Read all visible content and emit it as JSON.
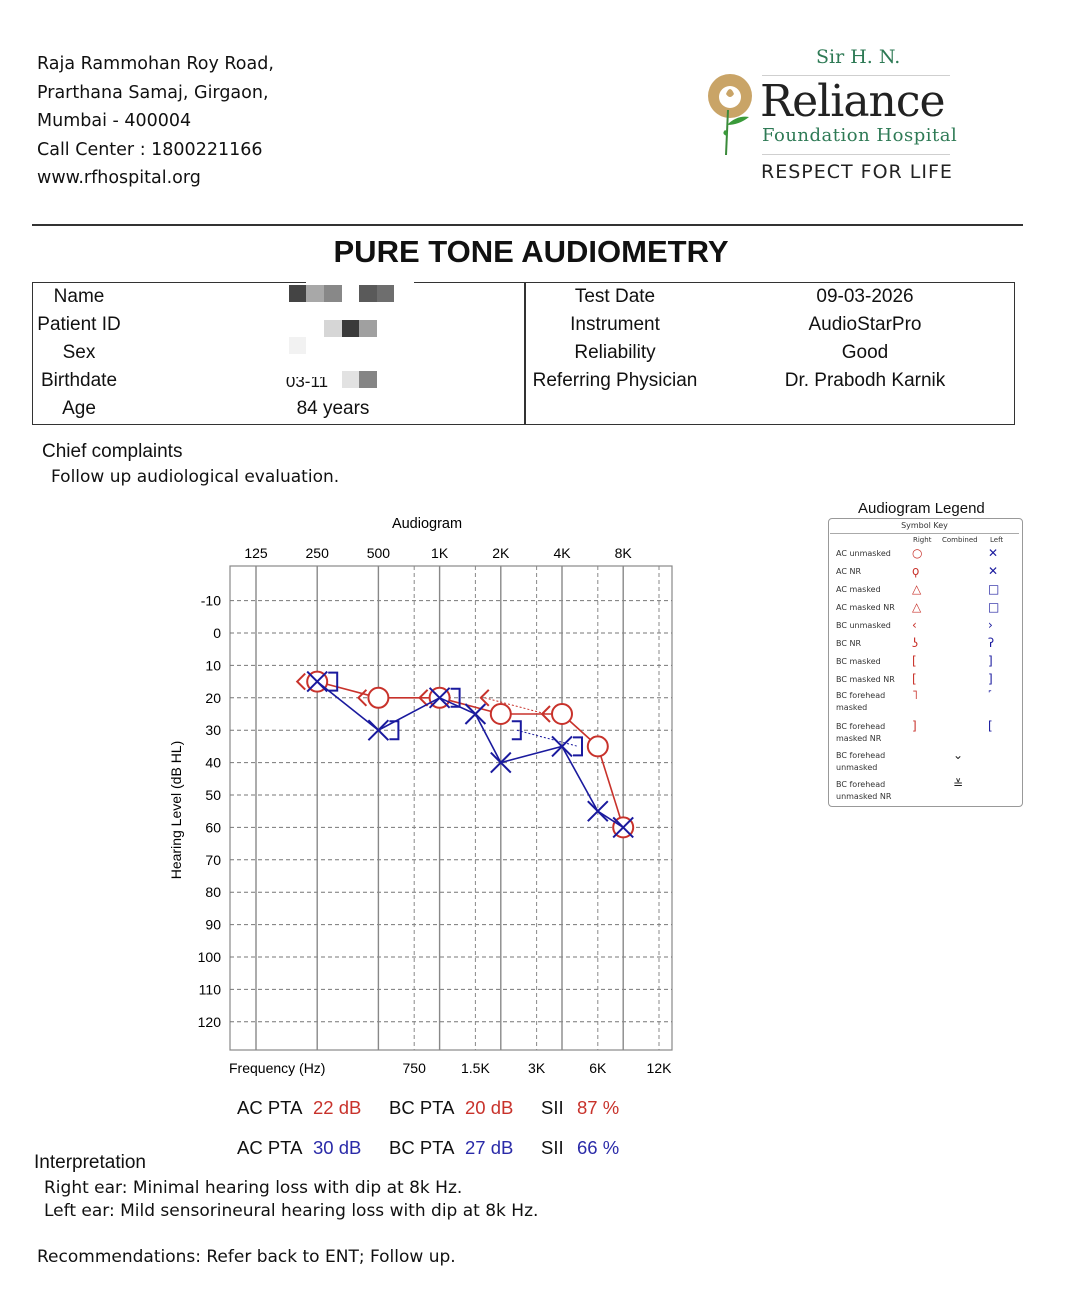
{
  "address": [
    "Raja Rammohan Roy Road,",
    "Prarthana Samaj, Girgaon,",
    "Mumbai - 400004",
    "Call Center : 1800221166",
    "www.rfhospital.org"
  ],
  "logo": {
    "prefix": "Sir H. N.",
    "name": "Reliance",
    "sub": "Foundation Hospital",
    "tagline": "RESPECT FOR LIFE"
  },
  "title": "PURE TONE AUDIOMETRY",
  "patient": {
    "name_label": "Name",
    "id_label": "Patient ID",
    "sex_label": "Sex",
    "birthdate_label": "Birthdate",
    "birthdate_value": "03-11",
    "age_label": "Age",
    "age_value": "84 years",
    "test_date_label": "Test Date",
    "test_date": "09-03-2026",
    "instrument_label": "Instrument",
    "instrument": "AudioStarPro",
    "reliability_label": "Reliability",
    "reliability": "Good",
    "physician_label": "Referring Physician",
    "physician": "Dr. Prabodh Karnik"
  },
  "complaints": {
    "heading": "Chief complaints",
    "text": "Follow up audiological evaluation."
  },
  "chart_data": {
    "type": "scatter",
    "title": "Audiogram",
    "xlabel": "Frequency (Hz)",
    "ylabel": "Hearing Level (dB HL)",
    "x_scale": "log",
    "x_ticks_top": [
      "125",
      "250",
      "500",
      "1K",
      "2K",
      "4K",
      "8K"
    ],
    "x_ticks_top_hz": [
      125,
      250,
      500,
      1000,
      2000,
      4000,
      8000
    ],
    "x_ticks_bottom": [
      "750",
      "1.5K",
      "3K",
      "6K",
      "12K"
    ],
    "x_ticks_bottom_hz": [
      750,
      1500,
      3000,
      6000,
      12000
    ],
    "y_ticks": [
      -10,
      0,
      10,
      20,
      30,
      40,
      50,
      60,
      70,
      80,
      90,
      100,
      110,
      120
    ],
    "ylim": [
      -20,
      130
    ],
    "y_inverted": true,
    "grid": true,
    "series": [
      {
        "ear": "right",
        "symbol": "circle",
        "color": "#c8322b",
        "line": "solid",
        "x": [
          250,
          500,
          1000,
          2000,
          4000,
          6000,
          8000
        ],
        "y": [
          15,
          20,
          20,
          25,
          25,
          35,
          60
        ]
      },
      {
        "ear": "right",
        "symbol": "lt",
        "color": "#c8322b",
        "line": "dotted",
        "x": [
          250,
          500,
          1000,
          2000,
          4000
        ],
        "y": [
          15,
          20,
          20,
          20,
          25
        ]
      },
      {
        "ear": "left",
        "symbol": "x",
        "color": "#1a1a9e",
        "line": "solid",
        "x": [
          250,
          500,
          1000,
          1500,
          2000,
          4000,
          6000,
          8000
        ],
        "y": [
          15,
          30,
          20,
          25,
          40,
          35,
          55,
          60
        ]
      },
      {
        "ear": "left",
        "symbol": "rbracket",
        "color": "#1a1a9e",
        "line": "dotted",
        "x": [
          250,
          500,
          1000,
          2000,
          4000
        ],
        "y": [
          15,
          30,
          20,
          30,
          35
        ]
      }
    ]
  },
  "legend": {
    "title": "Audiogram Legend",
    "subtitle": "Symbol Key",
    "columns": [
      "Right",
      "Combined",
      "Left"
    ],
    "rows": [
      {
        "label": "AC unmasked",
        "right": "○",
        "combined": "",
        "left": "✕"
      },
      {
        "label": "AC NR",
        "right": "ϙ",
        "combined": "",
        "left": "✕"
      },
      {
        "label": "AC masked",
        "right": "△",
        "combined": "",
        "left": "□"
      },
      {
        "label": "AC masked NR",
        "right": "△",
        "combined": "",
        "left": "□"
      },
      {
        "label": "BC unmasked",
        "right": "‹",
        "combined": "",
        "left": "›"
      },
      {
        "label": "BC NR",
        "right": "ʖ",
        "combined": "",
        "left": "ʔ"
      },
      {
        "label": "BC masked",
        "right": "[",
        "combined": "",
        "left": "]"
      },
      {
        "label": "BC masked NR",
        "right": "[",
        "combined": "",
        "left": "]"
      },
      {
        "label": "BC forehead masked",
        "right": "˥",
        "combined": "",
        "left": "˹"
      },
      {
        "label": "BC forehead masked NR",
        "right": "]",
        "combined": "",
        "left": "["
      },
      {
        "label": "BC forehead unmasked",
        "right": "",
        "combined": "⌄",
        "left": ""
      },
      {
        "label": "BC forehead unmasked NR",
        "right": "",
        "combined": "≚",
        "left": ""
      }
    ]
  },
  "pta": {
    "right": {
      "ac_label": "AC PTA",
      "ac": "22 dB",
      "bc_label": "BC PTA",
      "bc": "20 dB",
      "sii_label": "SII",
      "sii": "87 %"
    },
    "left": {
      "ac_label": "AC PTA",
      "ac": "30 dB",
      "bc_label": "BC PTA",
      "bc": "27 dB",
      "sii_label": "SII",
      "sii": "66 %"
    }
  },
  "interpretation": {
    "heading": "Interpretation",
    "right": "Right ear: Minimal hearing loss with dip at 8k Hz.",
    "left": "Left ear: Mild sensorineural hearing loss with dip at 8k Hz."
  },
  "recommendations": "Recommendations: Refer back to ENT; Follow up.",
  "colors": {
    "right": "#c8322b",
    "left": "#1a1a9e",
    "brand_green": "#2e7a55",
    "brand_gold": "#c9a467"
  }
}
